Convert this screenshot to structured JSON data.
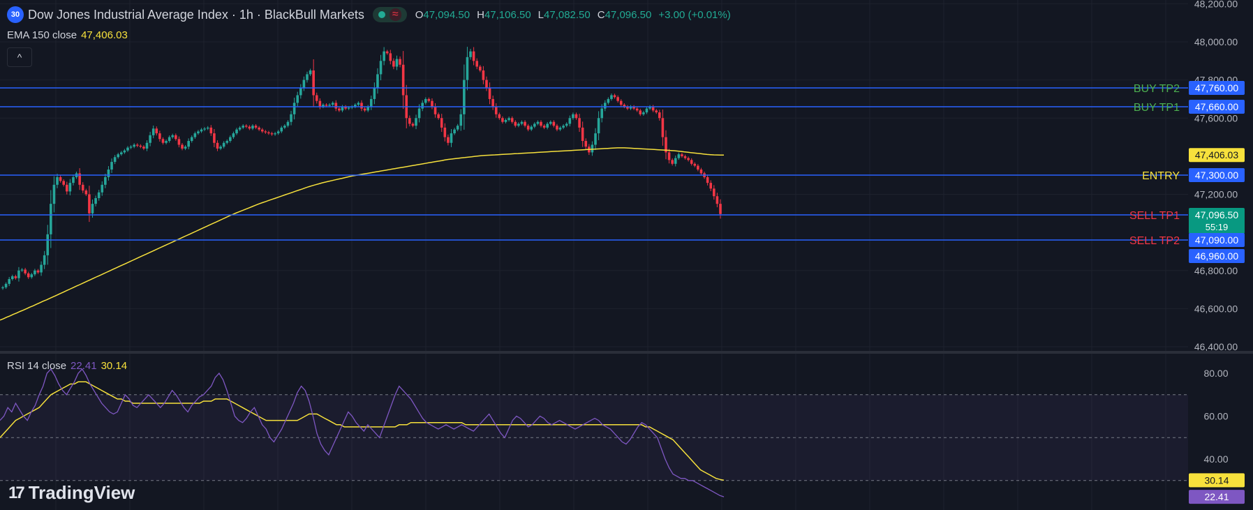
{
  "header": {
    "badge": "30",
    "title": "Dow Jones Industrial Average Index · 1h · BlackBull Markets",
    "wave_icon": "≈",
    "ohlc": {
      "o_label": "O",
      "o": "47,094.50",
      "h_label": "H",
      "h": "47,106.50",
      "l_label": "L",
      "l": "47,082.50",
      "c_label": "C",
      "c": "47,096.50",
      "change": "+3.00 (+0.01%)"
    }
  },
  "ema_legend": {
    "label": "EMA 150 close",
    "value": "47,406.03"
  },
  "collapse_icon": "^",
  "rsi_legend": {
    "label": "RSI 14 close",
    "rsi": "22.41",
    "ma": "30.14"
  },
  "brand": {
    "logo": "17",
    "name": "TradingView"
  },
  "colors": {
    "background": "#131722",
    "up": "#26a69a",
    "down": "#f23645",
    "ema": "#f7e13c",
    "level_line": "#2962ff",
    "buy": "#4caf50",
    "sell": "#f23645",
    "entry": "#f7e13c",
    "rsi": "#7e57c2",
    "rsi_ma": "#f7e13c",
    "current_price": "#089981"
  },
  "chart_data": [
    {
      "type": "candlestick",
      "title": "Dow Jones Industrial Average Index · 1h · BlackBull Markets",
      "ylim": [
        46400,
        48200
      ],
      "y_ticks": [
        "48,200.00",
        "48,000.00",
        "47,800.00",
        "47,600.00",
        "47,200.00",
        "46,800.00",
        "46,600.00",
        "46,400.00"
      ],
      "grid": true,
      "close": [
        46712,
        46730,
        46755,
        46770,
        46760,
        46800,
        46805,
        46785,
        46765,
        46780,
        46800,
        46790,
        46830,
        46880,
        46990,
        47150,
        47250,
        47290,
        47270,
        47250,
        47215,
        47260,
        47290,
        47310,
        47250,
        47220,
        47200,
        47100,
        47150,
        47180,
        47210,
        47250,
        47290,
        47330,
        47370,
        47395,
        47410,
        47420,
        47430,
        47445,
        47450,
        47460,
        47455,
        47450,
        47440,
        47470,
        47510,
        47545,
        47520,
        47490,
        47470,
        47480,
        47500,
        47510,
        47490,
        47460,
        47440,
        47450,
        47480,
        47500,
        47520,
        47530,
        47540,
        47545,
        47550,
        47520,
        47470,
        47440,
        47450,
        47470,
        47480,
        47500,
        47520,
        47540,
        47550,
        47560,
        47555,
        47545,
        47560,
        47550,
        47540,
        47530,
        47525,
        47520,
        47515,
        47520,
        47530,
        47550,
        47560,
        47580,
        47620,
        47680,
        47720,
        47760,
        47800,
        47830,
        47850,
        47720,
        47690,
        47660,
        47670,
        47665,
        47670,
        47680,
        47650,
        47640,
        47660,
        47650,
        47655,
        47660,
        47670,
        47680,
        47650,
        47640,
        47660,
        47700,
        47760,
        47830,
        47900,
        47950,
        47940,
        47900,
        47870,
        47910,
        47880,
        47720,
        47600,
        47570,
        47560,
        47600,
        47650,
        47680,
        47700,
        47690,
        47660,
        47620,
        47600,
        47550,
        47500,
        47470,
        47520,
        47540,
        47560,
        47620,
        47800,
        47920,
        47950,
        47900,
        47870,
        47850,
        47800,
        47760,
        47700,
        47660,
        47620,
        47600,
        47580,
        47590,
        47600,
        47580,
        47560,
        47570,
        47580,
        47560,
        47540,
        47555,
        47570,
        47580,
        47560,
        47550,
        47570,
        47580,
        47560,
        47540,
        47550,
        47560,
        47570,
        47600,
        47620,
        47600,
        47550,
        47480,
        47450,
        47420,
        47460,
        47520,
        47600,
        47650,
        47680,
        47700,
        47720,
        47710,
        47690,
        47670,
        47660,
        47650,
        47660,
        47650,
        47640,
        47620,
        47630,
        47650,
        47660,
        47640,
        47630,
        47600,
        47500,
        47420,
        47380,
        47360,
        47390,
        47410,
        47400,
        47390,
        47380,
        47360,
        47350,
        47330,
        47310,
        47290,
        47260,
        47230,
        47190,
        47150,
        47096.5
      ],
      "ema_150": [
        46540,
        46547,
        46555,
        46562,
        46570,
        46577,
        46585,
        46592,
        46600,
        46608,
        46615,
        46623,
        46631,
        46639,
        46646,
        46654,
        46662,
        46670,
        46678,
        46686,
        46694,
        46702,
        46710,
        46718,
        46726,
        46734,
        46742,
        46750,
        46758,
        46766,
        46774,
        46782,
        46790,
        46798,
        46806,
        46814,
        46822,
        46830,
        46838,
        46846,
        46854,
        46862,
        46870,
        46878,
        46886,
        46894,
        46902,
        46910,
        46918,
        46926,
        46934,
        46942,
        46950,
        46958,
        46966,
        46974,
        46982,
        46990,
        46998,
        47006,
        47014,
        47022,
        47030,
        47038,
        47046,
        47054,
        47062,
        47070,
        47078,
        47086,
        47094,
        47101,
        47108,
        47115,
        47122,
        47129,
        47136,
        47143,
        47150,
        47156,
        47162,
        47168,
        47174,
        47180,
        47186,
        47192,
        47198,
        47204,
        47210,
        47216,
        47222,
        47228,
        47234,
        47240,
        47245,
        47250,
        47255,
        47260,
        47264,
        47268,
        47272,
        47276,
        47280,
        47284,
        47288,
        47292,
        47296,
        47299,
        47302,
        47305,
        47308,
        47311,
        47314,
        47317,
        47320,
        47323,
        47326,
        47329,
        47332,
        47335,
        47338,
        47341,
        47344,
        47347,
        47350,
        47353,
        47356,
        47359,
        47362,
        47365,
        47368,
        47371,
        47374,
        47377,
        47380,
        47383,
        47385,
        47387,
        47389,
        47391,
        47393,
        47395,
        47397,
        47399,
        47401,
        47403,
        47404,
        47405,
        47406,
        47407,
        47408,
        47409,
        47410,
        47411,
        47412,
        47413,
        47414,
        47415,
        47416,
        47417,
        47418,
        47419,
        47420,
        47421,
        47422,
        47423,
        47424,
        47425,
        47426,
        47427,
        47428,
        47429,
        47430,
        47431,
        47432,
        47433,
        47434,
        47435,
        47436,
        47437,
        47438,
        47439,
        47440,
        47441,
        47442,
        47443,
        47444,
        47444,
        47444,
        47443,
        47442,
        47441,
        47440,
        47439,
        47438,
        47437,
        47436,
        47435,
        47434,
        47433,
        47432,
        47431,
        47430,
        47429,
        47427,
        47425,
        47423,
        47421,
        47419,
        47417,
        47415,
        47413,
        47411,
        47409,
        47408,
        47407,
        47406.5,
        47406.2,
        47406.03
      ],
      "levels": [
        {
          "label": "BUY TP2",
          "price": 47760,
          "value": "47,760.00",
          "kind": "buy"
        },
        {
          "label": "BUY TP1",
          "price": 47660,
          "value": "47,660.00",
          "kind": "buy"
        },
        {
          "label": "ENTRY",
          "price": 47300,
          "value": "47,300.00",
          "kind": "entry"
        },
        {
          "label": "SELL TP1",
          "price": 47096.5,
          "value": "47,096.50",
          "kind": "sell"
        },
        {
          "label": "SELL TP2",
          "price": 47090,
          "value": "47,090.00",
          "kind": "sell"
        },
        {
          "label": "",
          "price": 46960,
          "value": "46,960.00",
          "kind": "plain"
        }
      ],
      "ema_label": {
        "price": 47406.03,
        "value": "47,406.03"
      },
      "current_price": {
        "price": 47096.5,
        "value": "47,096.50",
        "countdown": "55:19"
      }
    },
    {
      "type": "line",
      "title": "RSI 14 close",
      "ylim": [
        20,
        85
      ],
      "y_ticks": [
        "80.00",
        "60.00",
        "40.00"
      ],
      "bands": [
        70,
        50,
        30
      ],
      "series": [
        {
          "name": "RSI",
          "values": [
            58,
            60,
            64,
            62,
            66,
            63,
            60,
            58,
            62,
            65,
            70,
            74,
            80,
            82,
            79,
            75,
            72,
            70,
            73,
            76,
            80,
            82,
            79,
            75,
            72,
            69,
            66,
            64,
            62,
            61,
            62,
            66,
            70,
            68,
            65,
            64,
            66,
            68,
            70,
            68,
            66,
            64,
            66,
            69,
            72,
            70,
            67,
            64,
            62,
            65,
            67,
            69,
            70,
            72,
            74,
            78,
            80,
            77,
            72,
            66,
            60,
            58,
            57,
            59,
            62,
            64,
            60,
            56,
            54,
            50,
            48,
            51,
            54,
            58,
            62,
            66,
            71,
            74,
            72,
            67,
            60,
            52,
            47,
            44,
            42,
            46,
            50,
            54,
            58,
            62,
            60,
            57,
            55,
            53,
            56,
            54,
            52,
            50,
            55,
            60,
            65,
            70,
            74,
            72,
            70,
            68,
            65,
            62,
            59,
            57,
            56,
            55,
            54,
            55,
            56,
            55,
            54,
            55,
            56,
            55,
            54,
            53,
            55,
            57,
            59,
            61,
            58,
            55,
            52,
            50,
            54,
            58,
            60,
            59,
            57,
            55,
            56,
            58,
            60,
            59,
            57,
            56,
            57,
            58,
            57,
            56,
            55,
            54,
            55,
            56,
            57,
            58,
            59,
            58,
            56,
            55,
            54,
            52,
            50,
            48,
            47,
            49,
            52,
            55,
            57,
            56,
            54,
            52,
            50,
            45,
            40,
            36,
            33,
            32,
            31,
            31,
            30,
            30,
            29,
            28,
            27,
            26,
            25,
            24,
            23,
            22.41
          ]
        },
        {
          "name": "RSI MA",
          "values": [
            50,
            52,
            54,
            56,
            58,
            59,
            60,
            61,
            62,
            63,
            64,
            66,
            68,
            70,
            71,
            72,
            73,
            74,
            75,
            75,
            76,
            76,
            76,
            75,
            74,
            73,
            72,
            71,
            70,
            69,
            68,
            68,
            67,
            67,
            66,
            66,
            66,
            66,
            66,
            66,
            66,
            66,
            66,
            66,
            66,
            66,
            66,
            66,
            66,
            66,
            66,
            66,
            67,
            67,
            67,
            68,
            68,
            68,
            68,
            67,
            66,
            65,
            64,
            63,
            62,
            61,
            60,
            59,
            58,
            58,
            58,
            58,
            58,
            58,
            58,
            58,
            58,
            59,
            60,
            61,
            61,
            61,
            60,
            59,
            58,
            57,
            56,
            56,
            55,
            55,
            55,
            55,
            55,
            55,
            55,
            55,
            55,
            55,
            55,
            55,
            55,
            55,
            56,
            56,
            56,
            57,
            57,
            57,
            57,
            57,
            57,
            57,
            57,
            57,
            57,
            57,
            57,
            57,
            57,
            56,
            56,
            56,
            56,
            56,
            56,
            56,
            56,
            56,
            56,
            56,
            56,
            56,
            56,
            56,
            56,
            56,
            56,
            56,
            56,
            56,
            56,
            56,
            56,
            56,
            56,
            56,
            56,
            56,
            56,
            56,
            56,
            56,
            56,
            56,
            56,
            56,
            56,
            56,
            56,
            56,
            56,
            56,
            56,
            56,
            56,
            55,
            55,
            54,
            53,
            52,
            51,
            50,
            49,
            47,
            45,
            43,
            41,
            39,
            37,
            35,
            34,
            33,
            32,
            31,
            30.5,
            30.14
          ]
        }
      ],
      "rsi_label": "22.41",
      "ma_label": "30.14"
    }
  ]
}
